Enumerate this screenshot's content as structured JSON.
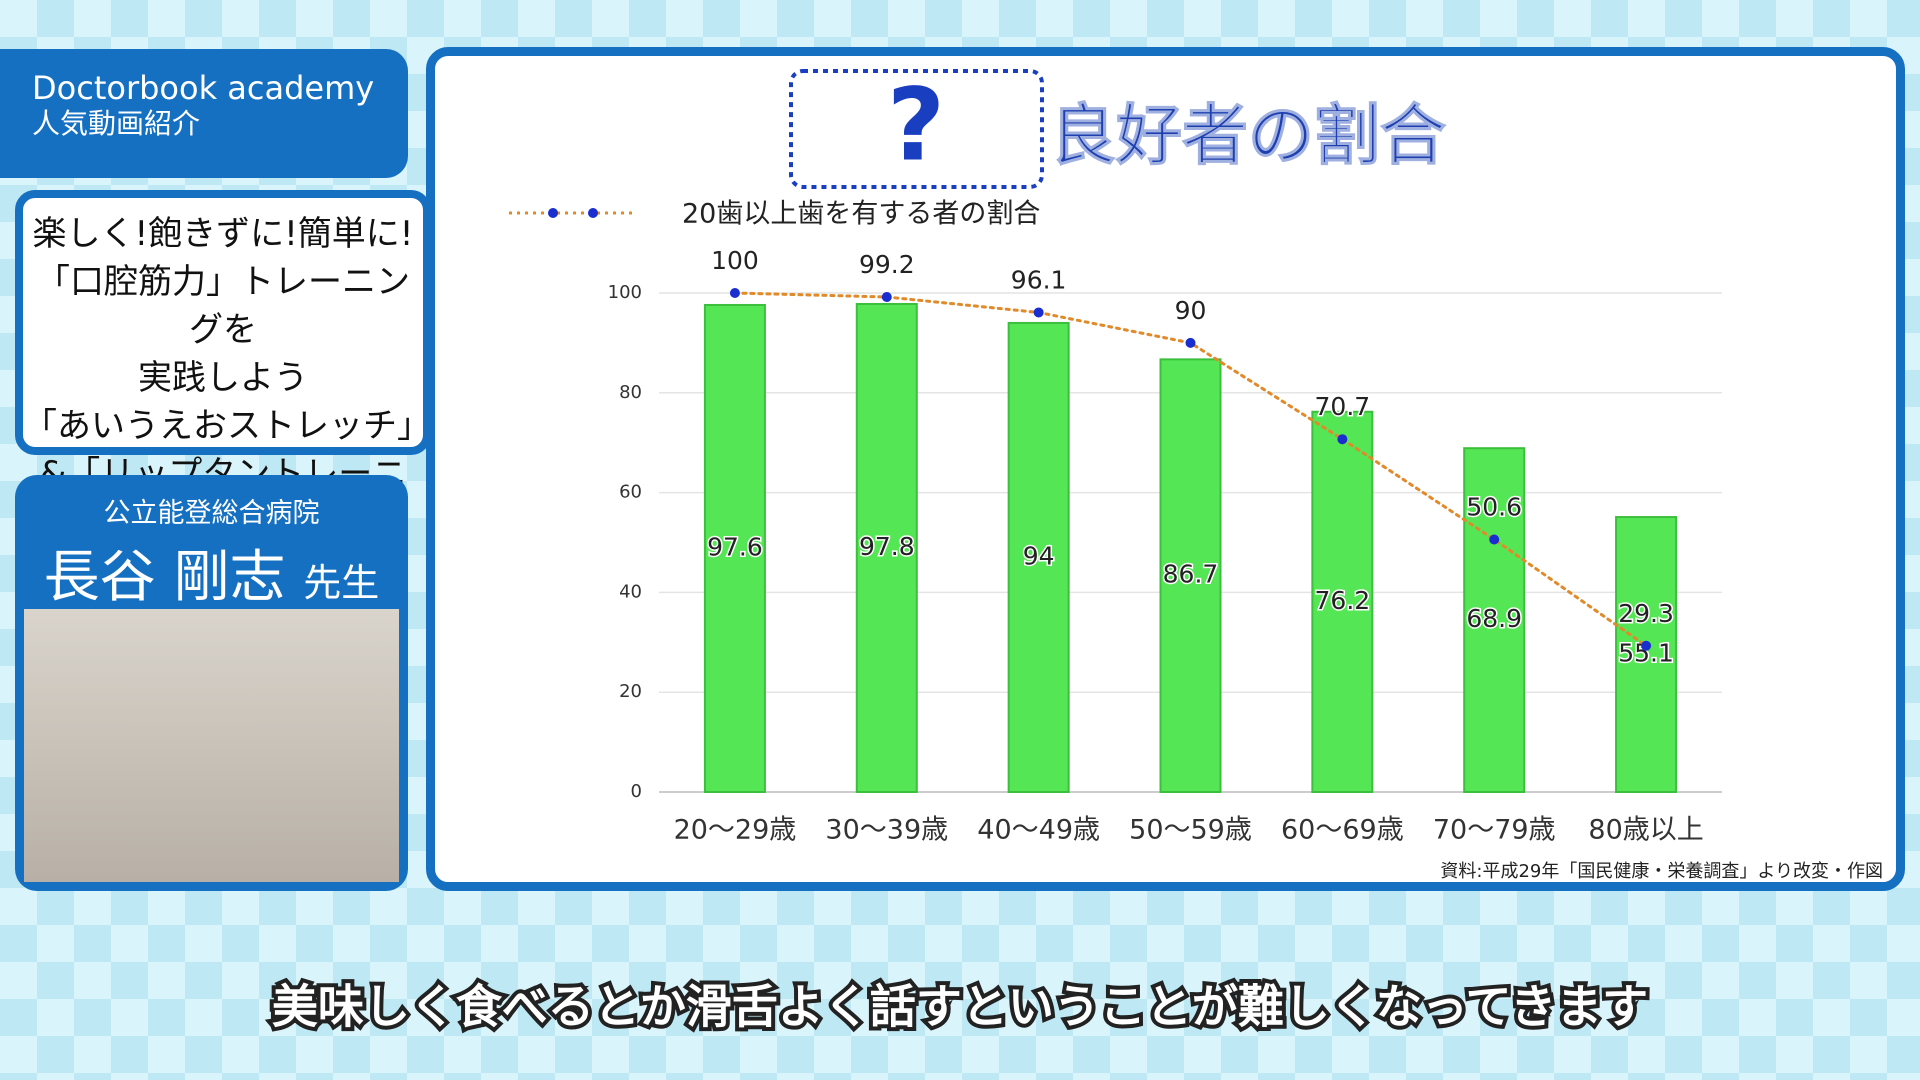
{
  "header": {
    "brand": "Doctorbook academy",
    "subtitle": "人気動画紹介"
  },
  "video_title": [
    "楽しく!飽きずに!簡単に!",
    "「口腔筋力」トレーニングを",
    "実践しよう",
    "「あいうえおストレッチ」",
    "&「リップタントレーニング」"
  ],
  "speaker": {
    "hospital": "公立能登総合病院",
    "name": "長谷 剛志",
    "honorific": "先生"
  },
  "chart_data": {
    "type": "bar",
    "title_mark": "?",
    "title": "良好者の割合",
    "categories": [
      "20～29歳",
      "30～39歳",
      "40～49歳",
      "50～59歳",
      "60～69歳",
      "70～79歳",
      "80歳以上"
    ],
    "series": [
      {
        "type": "bar",
        "color": "#55e655",
        "values": [
          97.6,
          97.8,
          94,
          86.7,
          76.2,
          68.9,
          55.1
        ]
      },
      {
        "type": "line",
        "name": "20歯以上歯を有する者の割合",
        "color": "#e08a2a",
        "marker_color": "#1a2ed0",
        "values": [
          100,
          99.2,
          96.1,
          90,
          70.7,
          50.6,
          29.3
        ]
      }
    ],
    "ylim": [
      0,
      100
    ],
    "yticks": [
      0,
      20,
      40,
      60,
      80,
      100
    ],
    "grid": true,
    "source": "資料:平成29年「国民健康・栄養調査」より改変・作図"
  },
  "caption": "美味しく食べるとか滑舌よく話すということが難しくなってきます"
}
